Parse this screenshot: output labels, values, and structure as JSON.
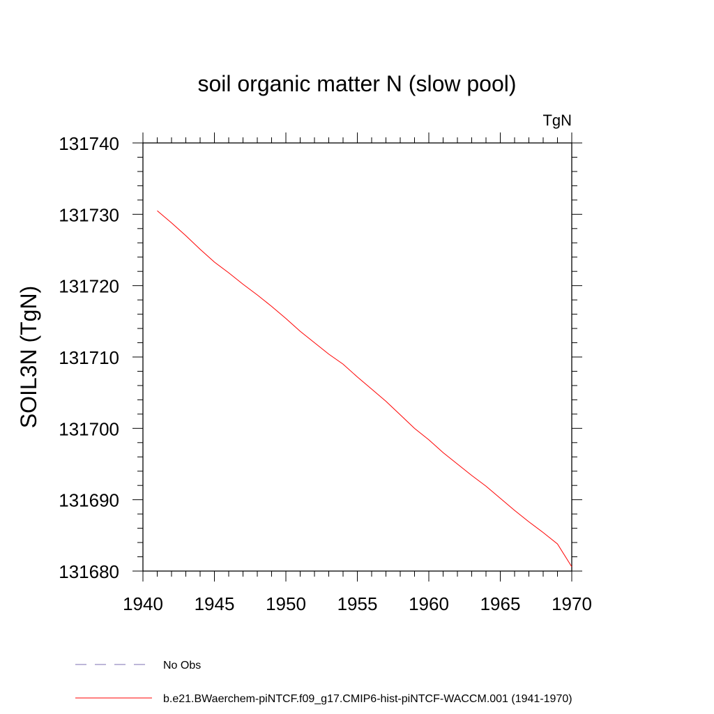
{
  "chart_data": {
    "type": "line",
    "title": "soil organic matter N (slow pool)",
    "units_label": "TgN",
    "ylabel": "SOIL3N  (TgN)",
    "xlabel": "",
    "xlim": [
      1940,
      1970
    ],
    "ylim": [
      131680,
      131740
    ],
    "x_ticks": [
      1940,
      1945,
      1950,
      1955,
      1960,
      1965,
      1970
    ],
    "y_ticks": [
      131680,
      131690,
      131700,
      131710,
      131720,
      131730,
      131740
    ],
    "grid": false,
    "legend_position": "bottom",
    "series": [
      {
        "name": "b.e21.BWaerchem-piNTCF.f09_g17.CMIP6-hist-piNTCF-WACCM.001 (1941-1970)",
        "color": "#ff0000",
        "style": "solid",
        "x": [
          1941,
          1942,
          1943,
          1944,
          1945,
          1946,
          1947,
          1948,
          1949,
          1950,
          1951,
          1952,
          1953,
          1954,
          1955,
          1956,
          1957,
          1958,
          1959,
          1960,
          1961,
          1962,
          1963,
          1964,
          1965,
          1966,
          1967,
          1968,
          1969,
          1970
        ],
        "y": [
          131730.5,
          131728.8,
          131727.0,
          131725.1,
          131723.3,
          131721.8,
          131720.2,
          131718.7,
          131717.1,
          131715.4,
          131713.6,
          131712.0,
          131710.4,
          131709.0,
          131707.2,
          131705.5,
          131703.8,
          131701.9,
          131700.0,
          131698.4,
          131696.6,
          131695.0,
          131693.4,
          131691.9,
          131690.2,
          131688.5,
          131686.9,
          131685.4,
          131683.8,
          131680.6
        ]
      }
    ],
    "legend": [
      {
        "label": "No Obs",
        "color": "#7b6fb0",
        "style": "dashed"
      },
      {
        "label": "b.e21.BWaerchem-piNTCF.f09_g17.CMIP6-hist-piNTCF-WACCM.001 (1941-1970)",
        "color": "#ff0000",
        "style": "solid"
      }
    ]
  }
}
